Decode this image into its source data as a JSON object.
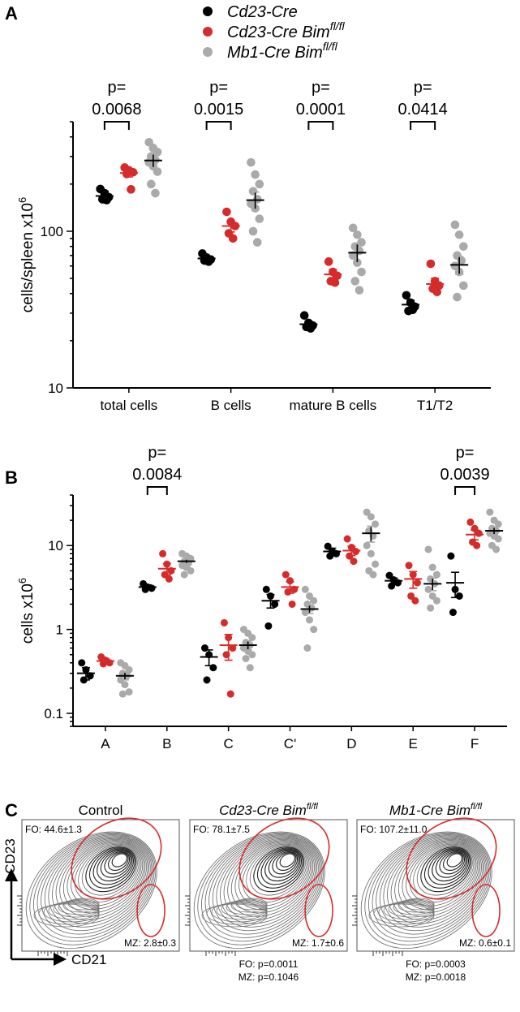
{
  "panel_labels": [
    "A",
    "B",
    "C"
  ],
  "legend": [
    {
      "label": "Cd23-Cre",
      "sup": "",
      "color": "#000000"
    },
    {
      "label": "Cd23-Cre Bim",
      "sup": "fl/fl",
      "color": "#d62b2b"
    },
    {
      "label": "Mb1-Cre Bim",
      "sup": "fl/fl",
      "color": "#aaaaaa"
    }
  ],
  "chart_data": [
    {
      "type": "scatter",
      "panel": "A",
      "ylabel": "cells/spleen x10",
      "ylabel_sup": "6",
      "yscale": "log",
      "ylim": [
        10,
        500
      ],
      "yticks": [
        {
          "value": 10,
          "label": "10"
        },
        {
          "value": 100,
          "label": "100"
        }
      ],
      "categories": [
        "total cells",
        "B cells",
        "mature B cells",
        "T1/T2"
      ],
      "series": [
        {
          "name": "Cd23-Cre",
          "color": "#000000",
          "means": [
            168,
            67,
            25.5,
            34
          ],
          "sem": [
            12,
            2,
            1.2,
            2.2
          ],
          "points": [
            [
              186,
              175,
              165,
              160,
              158
            ],
            [
              72,
              68,
              66,
              65,
              64
            ],
            [
              29,
              26,
              25,
              24.5,
              24
            ],
            [
              39,
              35,
              33,
              31,
              31.5
            ]
          ]
        },
        {
          "name": "Cd23-Cre Bimfl/fl",
          "color": "#d62b2b",
          "means": [
            235,
            108,
            53,
            46
          ],
          "sem": [
            13,
            9,
            4,
            4
          ],
          "points": [
            [
              255,
              245,
              238,
              232,
              185
            ],
            [
              133,
              115,
              108,
              97,
              90
            ],
            [
              64,
              55,
              52,
              48,
              47
            ],
            [
              62,
              48,
              45,
              43,
              41
            ]
          ]
        },
        {
          "name": "Mb1-Cre Bimfl/fl",
          "color": "#aaaaaa",
          "means": [
            283,
            158,
            73,
            61
          ],
          "sem": [
            28,
            20,
            10,
            8
          ],
          "points": [
            [
              370,
              340,
              320,
              300,
              285,
              275,
              260,
              240,
              200,
              175
            ],
            [
              275,
              230,
              200,
              180,
              160,
              150,
              140,
              120,
              100,
              85
            ],
            [
              105,
              95,
              85,
              80,
              75,
              70,
              63,
              55,
              48,
              42
            ],
            [
              110,
              95,
              80,
              70,
              65,
              60,
              55,
              45,
              38
            ]
          ]
        }
      ],
      "pvalues": [
        {
          "category": "total cells",
          "text": "0.0068"
        },
        {
          "category": "B cells",
          "text": "0.0015"
        },
        {
          "category": "mature B cells",
          "text": "0.0001"
        },
        {
          "category": "T1/T2",
          "text": "0.0414"
        }
      ],
      "p_label": "p="
    },
    {
      "type": "scatter",
      "panel": "B",
      "ylabel": "cells x10",
      "ylabel_sup": "6",
      "yscale": "log",
      "ylim": [
        0.07,
        40
      ],
      "yticks": [
        {
          "value": 0.1,
          "label": "0.1"
        },
        {
          "value": 1,
          "label": "1"
        },
        {
          "value": 10,
          "label": "10"
        }
      ],
      "categories": [
        "A",
        "B",
        "C",
        "C'",
        "D",
        "E",
        "F"
      ],
      "series": [
        {
          "name": "Cd23-Cre",
          "color": "#000000",
          "means": [
            0.3,
            3.2,
            0.47,
            2.2,
            8.5,
            3.8,
            3.6
          ],
          "sem": [
            0.05,
            0.2,
            0.1,
            0.4,
            0.8,
            0.3,
            1.2
          ],
          "points": [
            [
              0.4,
              0.33,
              0.28,
              0.25
            ],
            [
              3.5,
              3.2,
              3.1,
              3.0
            ],
            [
              0.6,
              0.5,
              0.35,
              0.25
            ],
            [
              3.0,
              2.5,
              2.0,
              1.1
            ],
            [
              9.8,
              8.6,
              8.0,
              7.5
            ],
            [
              4.4,
              3.9,
              3.6,
              3.3
            ],
            [
              7.5,
              3.0,
              2.5,
              1.6
            ]
          ]
        },
        {
          "name": "Cd23-Cre Bimfl/fl",
          "color": "#d62b2b",
          "means": [
            0.42,
            5.3,
            0.65,
            3.2,
            8.7,
            4.0,
            13.5
          ],
          "sem": [
            0.03,
            0.8,
            0.22,
            0.5,
            1.1,
            0.9,
            1.8
          ],
          "points": [
            [
              0.47,
              0.43,
              0.4,
              0.39
            ],
            [
              8.0,
              6.0,
              5.0,
              4.5,
              4.0
            ],
            [
              1.2,
              0.8,
              0.6,
              0.5,
              0.17
            ],
            [
              4.5,
              3.8,
              3.0,
              2.8,
              2.0
            ],
            [
              12,
              9.5,
              8.5,
              7.5,
              6.5
            ],
            [
              5.8,
              4.5,
              3.6,
              2.5,
              2.2
            ],
            [
              19,
              16,
              14,
              11,
              10
            ]
          ]
        },
        {
          "name": "Mb1-Cre Bimfl/fl",
          "color": "#aaaaaa",
          "means": [
            0.28,
            6.5,
            0.65,
            1.75,
            14,
            3.5,
            15
          ],
          "sem": [
            0.03,
            0.4,
            0.08,
            0.2,
            3,
            0.6,
            1.5
          ],
          "points": [
            [
              0.4,
              0.37,
              0.33,
              0.3,
              0.28,
              0.25,
              0.22,
              0.18,
              0.17
            ],
            [
              8.0,
              7.5,
              7.0,
              6.5,
              6.2,
              5.8,
              5.5,
              5.0,
              4.5
            ],
            [
              1.0,
              0.9,
              0.8,
              0.7,
              0.65,
              0.6,
              0.55,
              0.5,
              0.45,
              0.35
            ],
            [
              3.0,
              2.5,
              2.2,
              2.0,
              1.8,
              1.6,
              1.3,
              1.0,
              0.6
            ],
            [
              25,
              22,
              18,
              15,
              13,
              10,
              8,
              6,
              5,
              4.5
            ],
            [
              9.0,
              5.5,
              4.5,
              4.0,
              3.5,
              3.0,
              2.5,
              2.2,
              1.8
            ],
            [
              25,
              20,
              18,
              16,
              15,
              14,
              13,
              12,
              10,
              9
            ]
          ]
        }
      ],
      "pvalues": [
        {
          "category": "B",
          "text": "0.0084"
        },
        {
          "category": "F",
          "text": "0.0039"
        }
      ],
      "p_label": "p="
    }
  ],
  "flow": {
    "yaxis": "CD23",
    "xaxis": "CD21",
    "panels": [
      {
        "title": "Control",
        "title_sup": "",
        "italic": false,
        "fo": "FO: 44.6±1.3",
        "mz": "MZ: 2.8±0.3",
        "foot1": "",
        "foot2": ""
      },
      {
        "title": "Cd23-Cre Bim",
        "title_sup": "fl/fl",
        "italic": true,
        "fo": "FO: 78.1±7.5",
        "mz": "MZ: 1.7±0.6",
        "foot1": "FO: p=0.0011",
        "foot2": "MZ: p=0.1046"
      },
      {
        "title": "Mb1-Cre Bim",
        "title_sup": "fl/fl",
        "italic": true,
        "fo": "FO: 107.2±11.0",
        "mz": "MZ: 0.6±0.1",
        "foot1": "FO: p=0.0003",
        "foot2": "MZ: p=0.0018"
      }
    ]
  }
}
